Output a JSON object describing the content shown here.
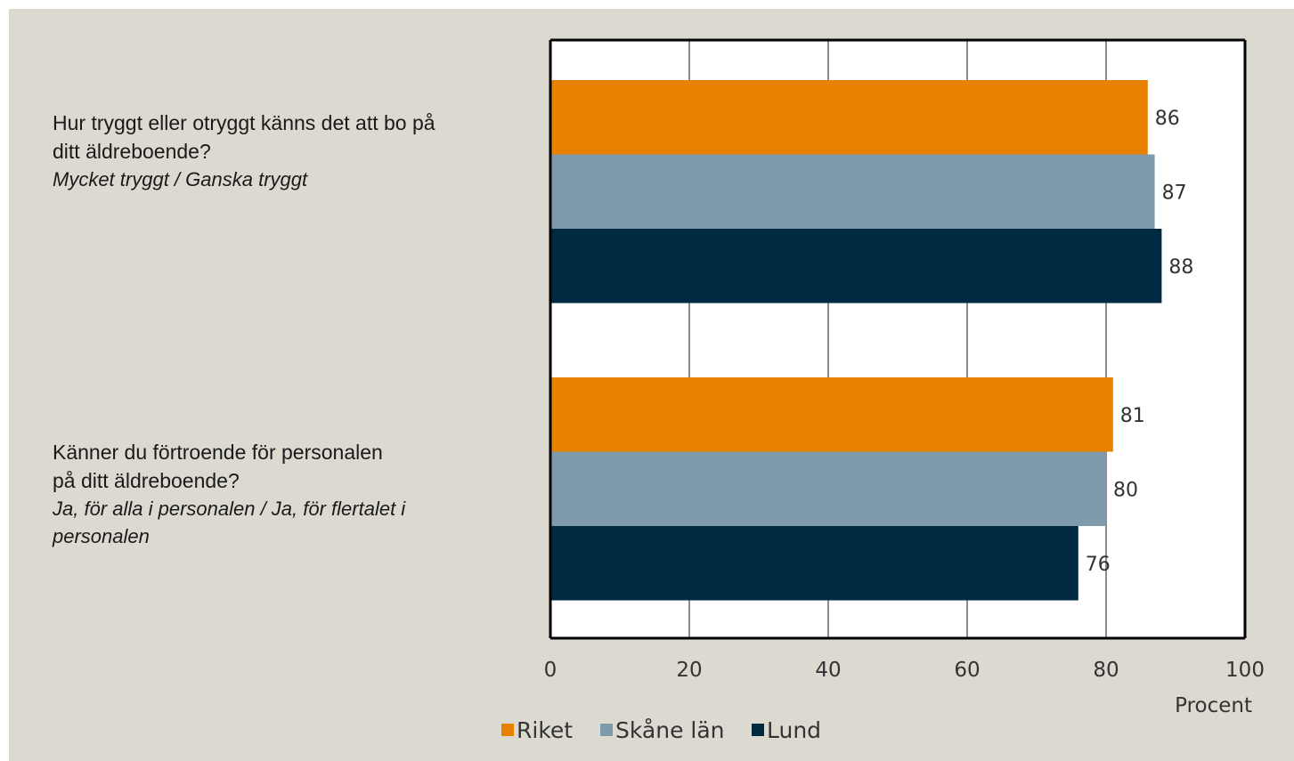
{
  "chart_data": {
    "type": "bar",
    "orientation": "horizontal",
    "categories": [
      {
        "question": "Hur tryggt eller otryggt känns det att bo på\nditt äldreboende?",
        "answer": "Mycket tryggt / Ganska tryggt"
      },
      {
        "question": "Känner du förtroende för personalen\npå ditt äldreboende?",
        "answer": "Ja, för alla i personalen / Ja, för flertalet i\npersonalen"
      }
    ],
    "series": [
      {
        "name": "Riket",
        "color": "#e88100",
        "values": [
          86,
          81
        ]
      },
      {
        "name": "Skåne län",
        "color": "#7f9bab",
        "values": [
          87,
          80
        ]
      },
      {
        "name": "Lund",
        "color": "#002a41",
        "values": [
          88,
          76
        ]
      }
    ],
    "xlabel": "Procent",
    "xlim": [
      0,
      100
    ],
    "xticks": [
      "0",
      "20",
      "40",
      "60",
      "80",
      "100"
    ],
    "grid": true,
    "legend_position": "bottom"
  }
}
